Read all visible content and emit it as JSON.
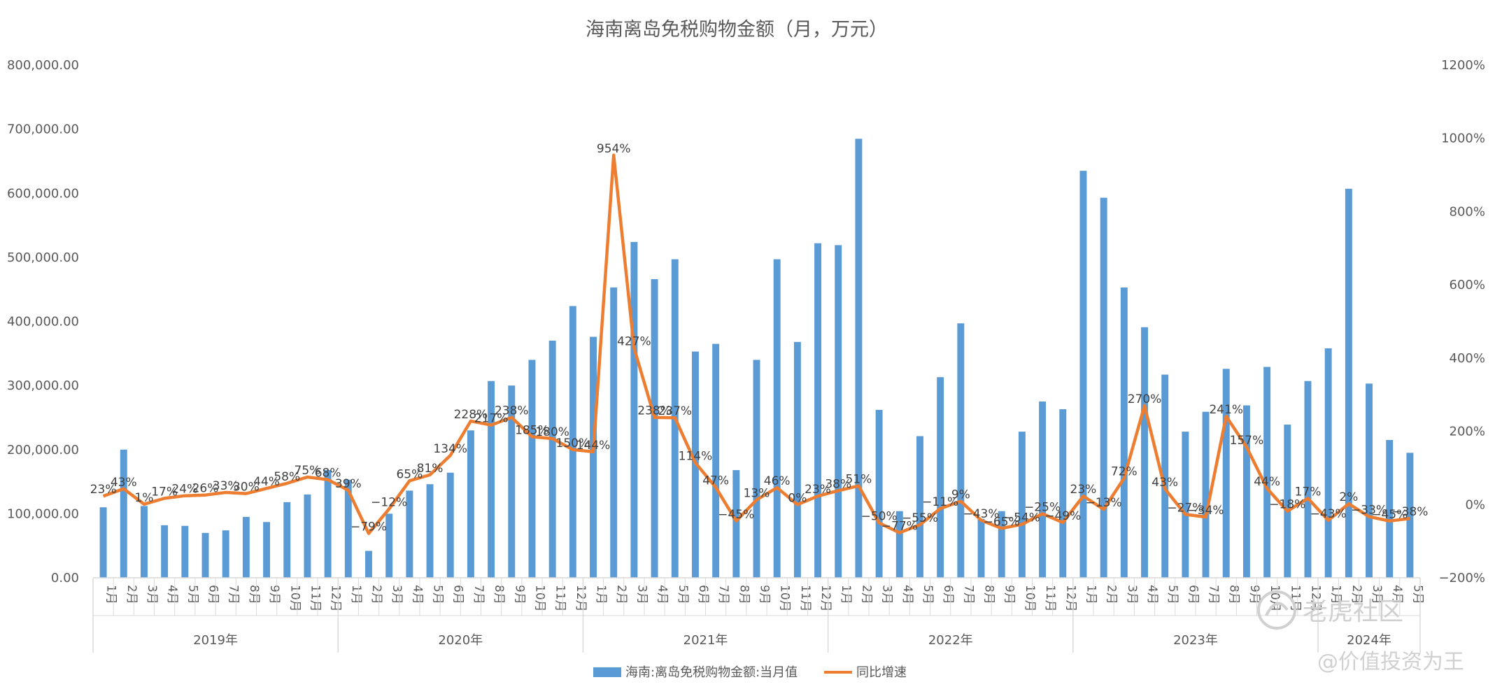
{
  "chart_data": {
    "type": "bar+line",
    "title": "海南离岛免税购物金额（月，万元）",
    "y_left": {
      "min": 0,
      "max": 800000,
      "step": 100000,
      "ticks": [
        "0.00",
        "100,000.00",
        "200,000.00",
        "300,000.00",
        "400,000.00",
        "500,000.00",
        "600,000.00",
        "700,000.00",
        "800,000.00"
      ]
    },
    "y_right": {
      "min": -200,
      "max": 1200,
      "step": 200,
      "ticks": [
        "−200%",
        "0%",
        "200%",
        "400%",
        "600%",
        "800%",
        "1000%",
        "1200%"
      ]
    },
    "years": [
      "2019年",
      "2020年",
      "2021年",
      "2022年",
      "2023年",
      "2024年"
    ],
    "months_per_year": [
      12,
      12,
      12,
      12,
      12,
      5
    ],
    "month_labels": [
      "1月",
      "2月",
      "3月",
      "4月",
      "5月",
      "6月",
      "7月",
      "8月",
      "9月",
      "10月",
      "11月",
      "12月"
    ],
    "series": [
      {
        "name": "海南:离岛免税购物金额:当月值",
        "type": "bar",
        "color": "#5b9bd5",
        "values": [
          110000,
          200000,
          112000,
          82000,
          81000,
          70000,
          74000,
          95000,
          87000,
          118000,
          130000,
          168000,
          153000,
          42000,
          100000,
          136000,
          146000,
          164000,
          230000,
          307000,
          300000,
          340000,
          370000,
          424000,
          376000,
          453000,
          524000,
          466000,
          497000,
          353000,
          365000,
          168000,
          340000,
          497000,
          368000,
          522000,
          519000,
          685000,
          262000,
          104000,
          221000,
          313000,
          397000,
          92000,
          104000,
          228000,
          275000,
          263000,
          635000,
          593000,
          453000,
          391000,
          317000,
          228000,
          259000,
          326000,
          269000,
          329000,
          239000,
          307000,
          358000,
          607000,
          303000,
          215000,
          195000
        ]
      },
      {
        "name": "同比增速",
        "type": "line",
        "color": "#ed7d31",
        "values": [
          23,
          43,
          1,
          17,
          24,
          26,
          33,
          30,
          44,
          58,
          75,
          68,
          39,
          -79,
          -12,
          65,
          81,
          134,
          228,
          217,
          238,
          185,
          180,
          150,
          144,
          954,
          427,
          238,
          237,
          114,
          47,
          -45,
          13,
          46,
          0,
          23,
          38,
          51,
          -50,
          -77,
          -55,
          -11,
          9,
          -43,
          -65,
          -54,
          -25,
          -49,
          23,
          -13,
          72,
          270,
          43,
          -27,
          -34,
          241,
          157,
          44,
          -18,
          17,
          -43,
          2,
          -33,
          -45,
          -38
        ],
        "labels": [
          "23%",
          "43%",
          "1%",
          "17%",
          "24%",
          "26%",
          "33%",
          "30%",
          "44%",
          "58%",
          "75%",
          "68%",
          "39%",
          "−79%",
          "−12%",
          "65%",
          "81%",
          "134%",
          "228%",
          "217%",
          "238%",
          "185%",
          "180%",
          "150%",
          "144%",
          "954%",
          "427%",
          "238%",
          "237%",
          "114%",
          "47%",
          "−45%",
          "13%",
          "46%",
          "0%",
          "23%",
          "38%",
          "51%",
          "−50%",
          "−77%",
          "−55%",
          "−11%",
          "9%",
          "−43%",
          "−65%",
          "−54%",
          "−25%",
          "−49%",
          "23%",
          "−13%",
          "72%",
          "270%",
          "43%",
          "−27%",
          "−34%",
          "241%",
          "157%",
          "44%",
          "−18%",
          "17%",
          "−43%",
          "2%",
          "−33%",
          "−45%",
          "−38%"
        ]
      }
    ],
    "legend": {
      "position": "bottom"
    },
    "grid": false
  },
  "watermark": {
    "brand": "老虎社区",
    "handle": "@价值投资为王"
  }
}
